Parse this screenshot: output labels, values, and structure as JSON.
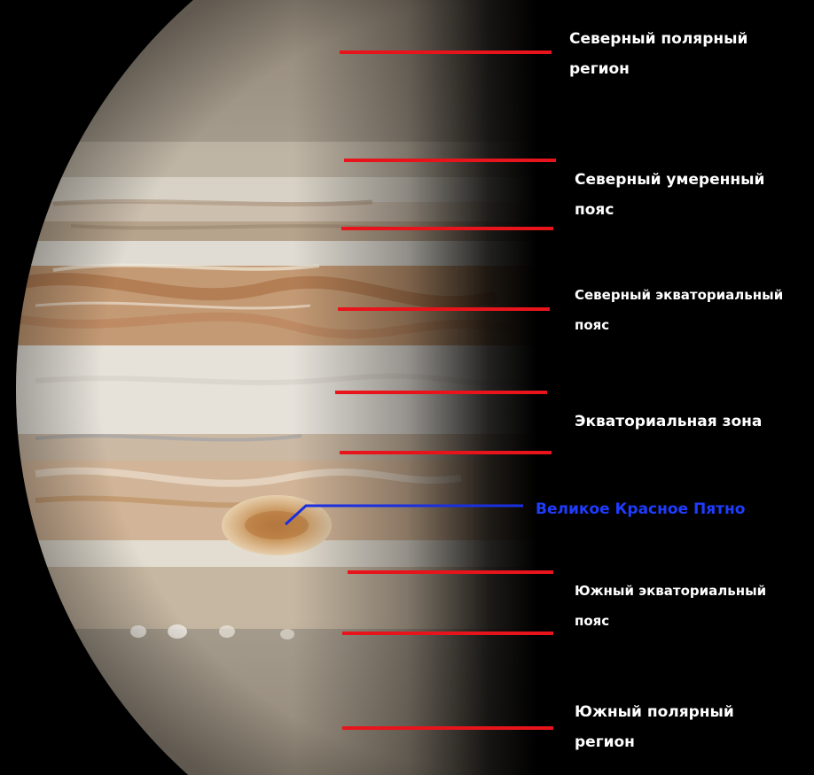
{
  "colors": {
    "background": "#000000",
    "marker_line": "#e8141c",
    "label_text": "#ffffff",
    "great_red_spot_label": "#1f3cff",
    "great_red_spot_line": "#1a2fe0"
  },
  "labels": {
    "north_polar": {
      "line1": "Северный полярный",
      "line2": "регион"
    },
    "north_temperate": {
      "line1": "Северный умеренный",
      "line2": "пояс"
    },
    "north_equatorial": {
      "line1": "Северный экваториальный",
      "line2": "пояс"
    },
    "equatorial_zone": {
      "line1": "Экваториальная зона"
    },
    "great_red_spot": {
      "line1": "Великое Красное Пятно"
    },
    "south_equatorial": {
      "line1": "Южный экваториальный",
      "line2": "пояс"
    },
    "south_polar": {
      "line1": "Южный полярный",
      "line2": "регион"
    }
  }
}
